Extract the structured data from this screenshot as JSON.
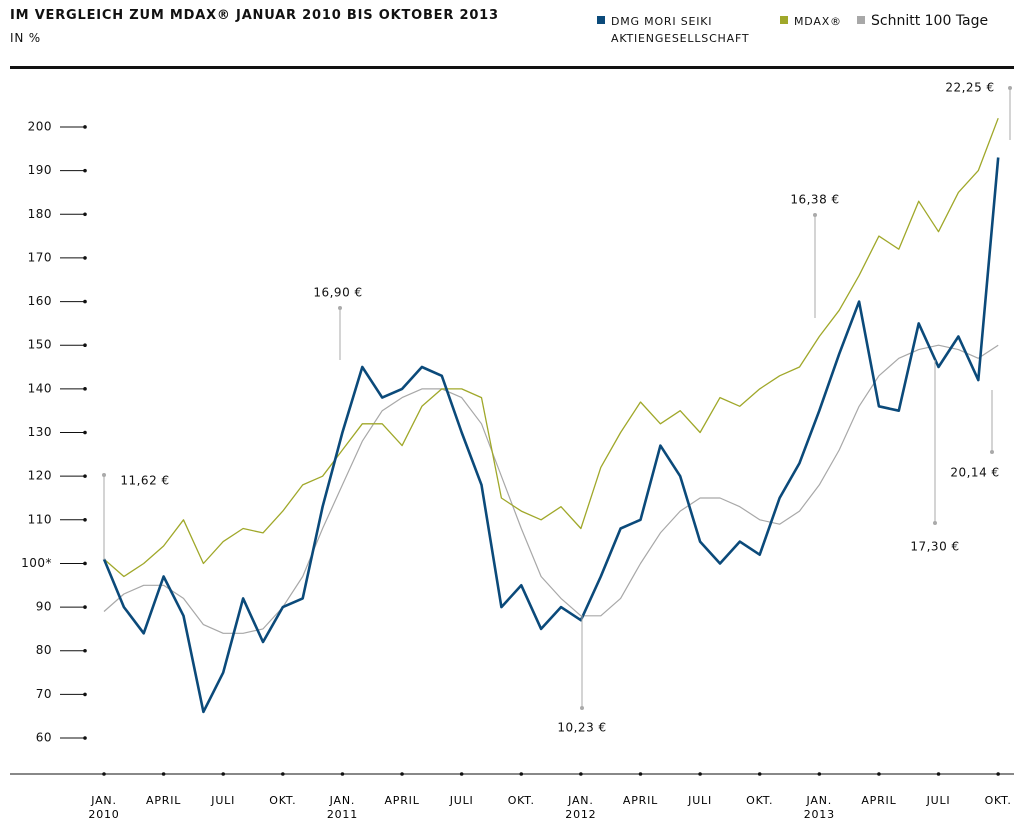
{
  "chart_data": {
    "type": "line",
    "title": "IM VERGLEICH ZUM MDAX® JANUAR 2010 BIS OKTOBER 2013",
    "subtitle": "IN %",
    "categories": [
      "JAN. 2010",
      null,
      null,
      "APRIL",
      null,
      null,
      "JULI",
      null,
      null,
      "OKT.",
      null,
      null,
      "JAN. 2011",
      null,
      null,
      "APRIL",
      null,
      null,
      "JULI",
      null,
      null,
      "OKT.",
      null,
      null,
      "JAN. 2012",
      null,
      null,
      "APRIL",
      null,
      null,
      "JULI",
      null,
      null,
      "OKT.",
      null,
      null,
      "JAN. 2013",
      null,
      null,
      "APRIL",
      null,
      null,
      "JULI",
      null,
      null,
      "OKT."
    ],
    "series": [
      {
        "name": "DMG MORI SEIKI AKTIENGESELLSCHAFT",
        "color": "#0b4a7a",
        "values": [
          101,
          90,
          84,
          97,
          88,
          66,
          75,
          92,
          82,
          90,
          92,
          113,
          130,
          145,
          138,
          140,
          145,
          143,
          130,
          118,
          90,
          95,
          85,
          90,
          87,
          97,
          108,
          110,
          127,
          120,
          105,
          100,
          105,
          102,
          115,
          123,
          135,
          148,
          160,
          136,
          135,
          155,
          145,
          152,
          142,
          193
        ]
      },
      {
        "name": "MDAX®",
        "color": "#a0a82a",
        "values": [
          101,
          97,
          100,
          104,
          110,
          100,
          105,
          108,
          107,
          112,
          118,
          120,
          126,
          132,
          132,
          127,
          136,
          140,
          140,
          138,
          115,
          112,
          110,
          113,
          108,
          122,
          130,
          137,
          132,
          135,
          130,
          138,
          136,
          140,
          143,
          145,
          152,
          158,
          166,
          175,
          172,
          183,
          176,
          185,
          190,
          202
        ]
      },
      {
        "name": "Schnitt 100 Tage",
        "color": "#a8a8a8",
        "values": [
          89,
          93,
          95,
          95,
          92,
          86,
          84,
          84,
          85,
          90,
          97,
          108,
          118,
          128,
          135,
          138,
          140,
          140,
          138,
          132,
          120,
          108,
          97,
          92,
          88,
          88,
          92,
          100,
          107,
          112,
          115,
          115,
          113,
          110,
          109,
          112,
          118,
          126,
          136,
          143,
          147,
          149,
          150,
          149,
          147,
          150
        ]
      }
    ],
    "ylim": [
      56,
      212
    ],
    "yticks": [
      60,
      70,
      80,
      90,
      {
        "value": 100,
        "label": "100*"
      },
      110,
      120,
      130,
      140,
      150,
      160,
      170,
      180,
      190,
      200
    ],
    "annotations": [
      "11,62 €",
      "16,90 €",
      "10,23 €",
      "16,38 €",
      "17,30 €",
      "20,14 €",
      "22,25 €"
    ]
  }
}
